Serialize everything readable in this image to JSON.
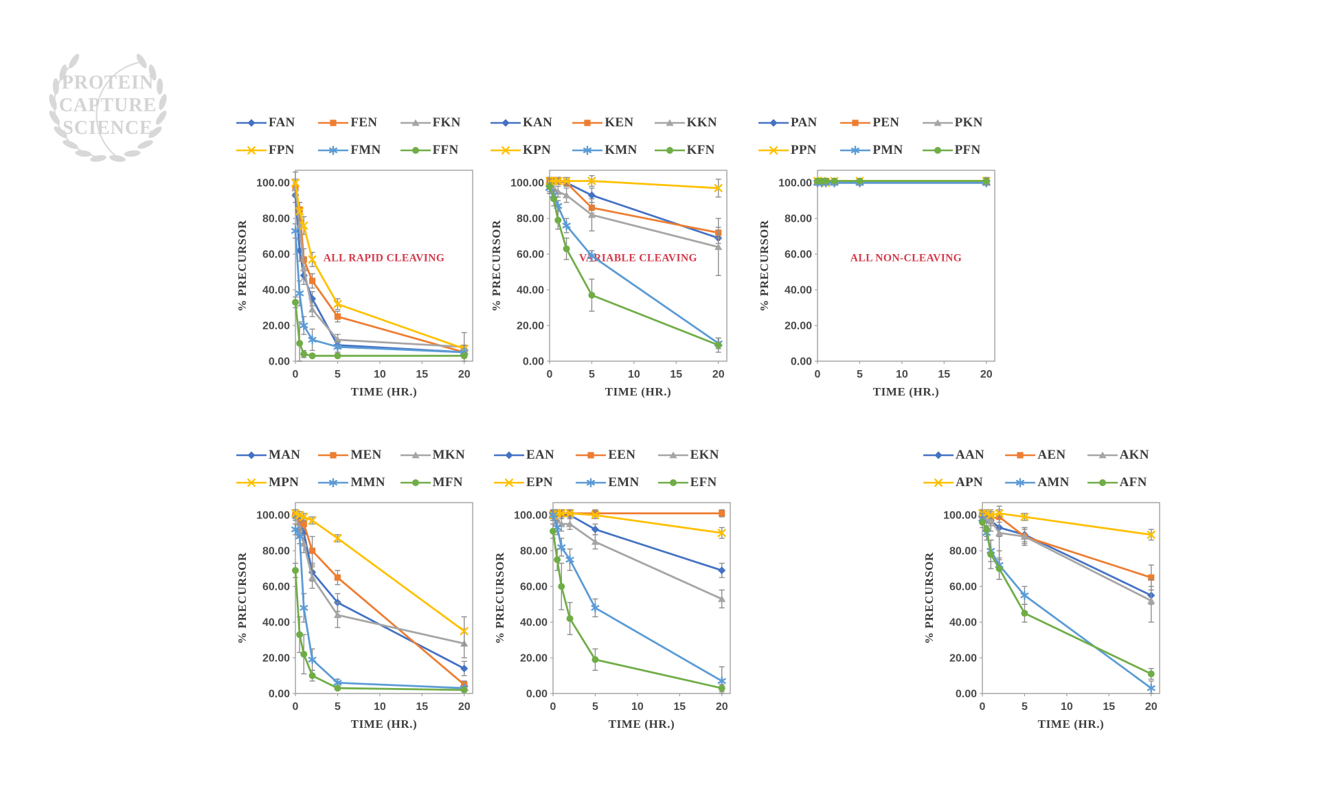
{
  "watermark": {
    "lines": [
      "PROTEIN",
      "CAPTURE",
      "SCIENCE"
    ]
  },
  "colors": {
    "annotation_red": "#d6394a",
    "axis_text": "#4a4a4a",
    "legend_text": "#3d3d3d",
    "plot_border": "#a0a0a0",
    "error_bar": "#8c8c8c",
    "watermark_gray": "#d8d8d8"
  },
  "chart_data": [
    {
      "id": "f-series",
      "type": "line",
      "annotation": "ALL RAPID CLEAVING",
      "xlabel": "TIME (HR.)",
      "ylabel": "% PRECURSOR",
      "x": [
        0,
        0.5,
        1,
        2,
        5,
        20
      ],
      "xticks": [
        "0",
        "5",
        "10",
        "15",
        "20"
      ],
      "yticks": [
        "0.00",
        "20.00",
        "40.00",
        "60.00",
        "80.00",
        "100.00"
      ],
      "ylim": [
        0,
        100
      ],
      "xlim": [
        0,
        21
      ],
      "series": [
        {
          "name": "FAN",
          "color": "#4472C4",
          "marker": "diamond",
          "values": [
            93,
            62,
            48,
            35,
            9,
            5
          ],
          "err": [
            4,
            6,
            5,
            4,
            2,
            3
          ]
        },
        {
          "name": "FEN",
          "color": "#ED7D31",
          "marker": "square",
          "values": [
            97,
            85,
            57,
            45,
            25,
            5
          ],
          "err": [
            5,
            4,
            6,
            4,
            3,
            2
          ]
        },
        {
          "name": "FKN",
          "color": "#A5A5A5",
          "marker": "triangle",
          "values": [
            97,
            76,
            52,
            29,
            12,
            8
          ],
          "err": [
            4,
            8,
            6,
            4,
            3,
            8
          ]
        },
        {
          "name": "FPN",
          "color": "#FFC000",
          "marker": "x",
          "values": [
            100,
            84,
            76,
            57,
            32,
            7
          ],
          "err": [
            6,
            5,
            5,
            4,
            3,
            2
          ]
        },
        {
          "name": "FMN",
          "color": "#5B9BD5",
          "marker": "asterisk",
          "values": [
            73,
            38,
            20,
            12,
            8,
            5
          ],
          "err": [
            4,
            7,
            5,
            6,
            3,
            2
          ]
        },
        {
          "name": "FFN",
          "color": "#70AD47",
          "marker": "circle",
          "values": [
            33,
            10,
            4,
            3,
            3,
            3
          ],
          "err": [
            3,
            12,
            2,
            1,
            1,
            1
          ]
        }
      ]
    },
    {
      "id": "k-series",
      "type": "line",
      "annotation": "VARIABLE CLEAVING",
      "xlabel": "TIME (HR.)",
      "ylabel": "% PRECURSOR",
      "x": [
        0,
        0.5,
        1,
        2,
        5,
        20
      ],
      "xticks": [
        "0",
        "5",
        "10",
        "15",
        "20"
      ],
      "yticks": [
        "0.00",
        "20.00",
        "40.00",
        "60.00",
        "80.00",
        "100.00"
      ],
      "ylim": [
        0,
        100
      ],
      "xlim": [
        0,
        21
      ],
      "series": [
        {
          "name": "KAN",
          "color": "#4472C4",
          "marker": "diamond",
          "values": [
            100,
            101,
            101,
            100,
            93,
            69
          ],
          "err": [
            2,
            2,
            2,
            2,
            4,
            3
          ]
        },
        {
          "name": "KEN",
          "color": "#ED7D31",
          "marker": "square",
          "values": [
            101,
            101,
            101,
            100,
            86,
            72
          ],
          "err": [
            2,
            2,
            2,
            2,
            3,
            3
          ]
        },
        {
          "name": "KKN",
          "color": "#A5A5A5",
          "marker": "triangle",
          "values": [
            98,
            97,
            95,
            93,
            82,
            64
          ],
          "err": [
            3,
            3,
            3,
            4,
            9,
            16
          ]
        },
        {
          "name": "KPN",
          "color": "#FFC000",
          "marker": "x",
          "values": [
            101,
            101,
            101,
            101,
            101,
            97
          ],
          "err": [
            2,
            2,
            2,
            2,
            3,
            5
          ]
        },
        {
          "name": "KMN",
          "color": "#5B9BD5",
          "marker": "asterisk",
          "values": [
            97,
            93,
            87,
            76,
            59,
            10
          ],
          "err": [
            3,
            3,
            3,
            4,
            3,
            3
          ]
        },
        {
          "name": "KFN",
          "color": "#70AD47",
          "marker": "circle",
          "values": [
            98,
            91,
            79,
            63,
            37,
            9
          ],
          "err": [
            4,
            4,
            5,
            6,
            9,
            4
          ]
        }
      ]
    },
    {
      "id": "p-series",
      "type": "line",
      "annotation": "ALL NON-CLEAVING",
      "xlabel": "TIME (HR.)",
      "ylabel": "% PRECURSOR",
      "x": [
        0,
        0.5,
        1,
        2,
        5,
        20
      ],
      "xticks": [
        "0",
        "5",
        "10",
        "15",
        "20"
      ],
      "yticks": [
        "0.00",
        "20.00",
        "40.00",
        "60.00",
        "80.00",
        "100.00"
      ],
      "ylim": [
        0,
        100
      ],
      "xlim": [
        0,
        21
      ],
      "series": [
        {
          "name": "PAN",
          "color": "#4472C4",
          "marker": "diamond",
          "values": [
            100,
            100,
            100,
            100,
            100,
            100
          ],
          "err": [
            1,
            1,
            1,
            1,
            1,
            1
          ]
        },
        {
          "name": "PEN",
          "color": "#ED7D31",
          "marker": "square",
          "values": [
            101,
            101,
            101,
            101,
            101,
            101
          ],
          "err": [
            1,
            1,
            1,
            1,
            1,
            1
          ]
        },
        {
          "name": "PKN",
          "color": "#A5A5A5",
          "marker": "triangle",
          "values": [
            100,
            100,
            100,
            100,
            100,
            100
          ],
          "err": [
            1,
            1,
            1,
            1,
            1,
            1
          ]
        },
        {
          "name": "PPN",
          "color": "#FFC000",
          "marker": "x",
          "values": [
            101,
            101,
            100,
            101,
            101,
            101
          ],
          "err": [
            1,
            1,
            1,
            1,
            1,
            1
          ]
        },
        {
          "name": "PMN",
          "color": "#5B9BD5",
          "marker": "asterisk",
          "values": [
            100,
            100,
            100,
            100,
            100,
            100
          ],
          "err": [
            1,
            1,
            1,
            1,
            1,
            1
          ]
        },
        {
          "name": "PFN",
          "color": "#70AD47",
          "marker": "circle",
          "values": [
            101,
            101,
            101,
            101,
            101,
            101
          ],
          "err": [
            1,
            1,
            1,
            1,
            1,
            2
          ]
        }
      ]
    },
    {
      "id": "m-series",
      "type": "line",
      "annotation": "",
      "xlabel": "TIME (HR.)",
      "ylabel": "% PRECURSOR",
      "x": [
        0,
        0.5,
        1,
        2,
        5,
        20
      ],
      "xticks": [
        "0",
        "5",
        "10",
        "15",
        "20"
      ],
      "yticks": [
        "0.00",
        "20.00",
        "40.00",
        "60.00",
        "80.00",
        "100.00"
      ],
      "ylim": [
        0,
        100
      ],
      "xlim": [
        0,
        21
      ],
      "series": [
        {
          "name": "MAN",
          "color": "#4472C4",
          "marker": "diamond",
          "values": [
            100,
            97,
            90,
            68,
            51,
            14
          ],
          "err": [
            2,
            3,
            4,
            5,
            5,
            4
          ]
        },
        {
          "name": "MEN",
          "color": "#ED7D31",
          "marker": "square",
          "values": [
            100,
            96,
            95,
            80,
            65,
            5
          ],
          "err": [
            2,
            3,
            3,
            8,
            4,
            2
          ]
        },
        {
          "name": "MKN",
          "color": "#A5A5A5",
          "marker": "triangle",
          "values": [
            100,
            92,
            84,
            65,
            44,
            28
          ],
          "err": [
            3,
            4,
            5,
            6,
            7,
            8
          ]
        },
        {
          "name": "MPN",
          "color": "#FFC000",
          "marker": "x",
          "values": [
            101,
            100,
            99,
            97,
            87,
            35
          ],
          "err": [
            2,
            2,
            2,
            2,
            2,
            8
          ]
        },
        {
          "name": "MMN",
          "color": "#5B9BD5",
          "marker": "asterisk",
          "values": [
            92,
            88,
            48,
            19,
            6,
            3
          ],
          "err": [
            3,
            4,
            8,
            6,
            2,
            1
          ]
        },
        {
          "name": "MFN",
          "color": "#70AD47",
          "marker": "circle",
          "values": [
            69,
            33,
            22,
            10,
            3,
            2
          ],
          "err": [
            4,
            10,
            11,
            3,
            1,
            1
          ]
        }
      ]
    },
    {
      "id": "e-series",
      "type": "line",
      "annotation": "",
      "xlabel": "TIME (HR.)",
      "ylabel": "% PRECURSOR",
      "x": [
        0,
        0.5,
        1,
        2,
        5,
        20
      ],
      "xticks": [
        "0",
        "5",
        "10",
        "15",
        "20"
      ],
      "yticks": [
        "0.00",
        "20.00",
        "40.00",
        "60.00",
        "80.00",
        "100.00"
      ],
      "ylim": [
        0,
        100
      ],
      "xlim": [
        0,
        21
      ],
      "series": [
        {
          "name": "EAN",
          "color": "#4472C4",
          "marker": "diamond",
          "values": [
            101,
            101,
            100,
            100,
            92,
            69
          ],
          "err": [
            2,
            2,
            2,
            2,
            3,
            4
          ]
        },
        {
          "name": "EEN",
          "color": "#ED7D31",
          "marker": "square",
          "values": [
            101,
            101,
            101,
            101,
            101,
            101
          ],
          "err": [
            2,
            2,
            2,
            2,
            2,
            2
          ]
        },
        {
          "name": "EKN",
          "color": "#A5A5A5",
          "marker": "triangle",
          "values": [
            100,
            97,
            95,
            95,
            85,
            53
          ],
          "err": [
            3,
            3,
            4,
            3,
            4,
            5
          ]
        },
        {
          "name": "EPN",
          "color": "#FFC000",
          "marker": "x",
          "values": [
            100,
            101,
            101,
            101,
            100,
            90
          ],
          "err": [
            2,
            2,
            2,
            2,
            2,
            3
          ]
        },
        {
          "name": "EMN",
          "color": "#5B9BD5",
          "marker": "asterisk",
          "values": [
            100,
            93,
            82,
            75,
            48,
            7
          ],
          "err": [
            3,
            4,
            5,
            6,
            5,
            8
          ]
        },
        {
          "name": "EFN",
          "color": "#70AD47",
          "marker": "circle",
          "values": [
            91,
            75,
            60,
            42,
            19,
            3
          ],
          "err": [
            4,
            6,
            13,
            9,
            6,
            2
          ]
        }
      ]
    },
    {
      "id": "a-series",
      "type": "line",
      "annotation": "",
      "xlabel": "TIME (HR.)",
      "ylabel": "% PRECURSOR",
      "x": [
        0,
        0.5,
        1,
        2,
        5,
        20
      ],
      "xticks": [
        "0",
        "5",
        "10",
        "15",
        "20"
      ],
      "yticks": [
        "0.00",
        "20.00",
        "40.00",
        "60.00",
        "80.00",
        "100.00"
      ],
      "ylim": [
        0,
        100
      ],
      "xlim": [
        0,
        21
      ],
      "series": [
        {
          "name": "AAN",
          "color": "#4472C4",
          "marker": "diamond",
          "values": [
            100,
            99,
            97,
            93,
            89,
            55
          ],
          "err": [
            2,
            3,
            3,
            5,
            4,
            5
          ]
        },
        {
          "name": "AEN",
          "color": "#ED7D31",
          "marker": "square",
          "values": [
            101,
            100,
            98,
            99,
            88,
            65
          ],
          "err": [
            2,
            2,
            3,
            3,
            4,
            7
          ]
        },
        {
          "name": "AKN",
          "color": "#A5A5A5",
          "marker": "triangle",
          "values": [
            100,
            98,
            97,
            90,
            88,
            52
          ],
          "err": [
            3,
            4,
            6,
            15,
            5,
            12
          ]
        },
        {
          "name": "APN",
          "color": "#FFC000",
          "marker": "x",
          "values": [
            101,
            101,
            100,
            101,
            99,
            89
          ],
          "err": [
            2,
            2,
            2,
            2,
            2,
            3
          ]
        },
        {
          "name": "AMN",
          "color": "#5B9BD5",
          "marker": "asterisk",
          "values": [
            98,
            90,
            80,
            72,
            55,
            3
          ],
          "err": [
            3,
            4,
            6,
            8,
            5,
            4
          ]
        },
        {
          "name": "AFN",
          "color": "#70AD47",
          "marker": "circle",
          "values": [
            96,
            92,
            78,
            70,
            45,
            11
          ],
          "err": [
            3,
            4,
            8,
            6,
            5,
            3
          ]
        }
      ]
    }
  ]
}
